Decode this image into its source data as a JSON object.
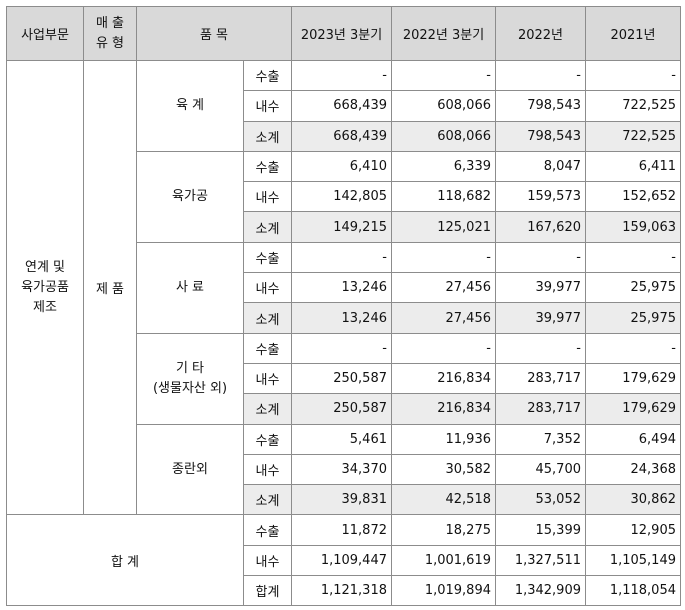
{
  "headers": {
    "division": "사업부문",
    "sales_type": "매 출\n유 형",
    "product": "품 목",
    "periods": [
      "2023년 3분기",
      "2022년 3분기",
      "2022년",
      "2021년"
    ]
  },
  "division_label": "연계 및\n육가공품\n제조",
  "sales_type_label": "제 품",
  "groups": [
    {
      "product": "육 계",
      "rows": [
        {
          "label": "수출",
          "values": [
            "-",
            "-",
            "-",
            "-"
          ]
        },
        {
          "label": "내수",
          "values": [
            "668,439",
            "608,066",
            "798,543",
            "722,525"
          ]
        },
        {
          "label": "소계",
          "values": [
            "668,439",
            "608,066",
            "798,543",
            "722,525"
          ]
        }
      ]
    },
    {
      "product": "육가공",
      "rows": [
        {
          "label": "수출",
          "values": [
            "6,410",
            "6,339",
            "8,047",
            "6,411"
          ]
        },
        {
          "label": "내수",
          "values": [
            "142,805",
            "118,682",
            "159,573",
            "152,652"
          ]
        },
        {
          "label": "소계",
          "values": [
            "149,215",
            "125,021",
            "167,620",
            "159,063"
          ]
        }
      ]
    },
    {
      "product": "사 료",
      "rows": [
        {
          "label": "수출",
          "values": [
            "-",
            "-",
            "-",
            "-"
          ]
        },
        {
          "label": "내수",
          "values": [
            "13,246",
            "27,456",
            "39,977",
            "25,975"
          ]
        },
        {
          "label": "소계",
          "values": [
            "13,246",
            "27,456",
            "39,977",
            "25,975"
          ]
        }
      ]
    },
    {
      "product": "기 타\n(생물자산 외)",
      "rows": [
        {
          "label": "수출",
          "values": [
            "-",
            "-",
            "-",
            "-"
          ]
        },
        {
          "label": "내수",
          "values": [
            "250,587",
            "216,834",
            "283,717",
            "179,629"
          ]
        },
        {
          "label": "소계",
          "values": [
            "250,587",
            "216,834",
            "283,717",
            "179,629"
          ]
        }
      ]
    },
    {
      "product": "종란외",
      "rows": [
        {
          "label": "수출",
          "values": [
            "5,461",
            "11,936",
            "7,352",
            "6,494"
          ]
        },
        {
          "label": "내수",
          "values": [
            "34,370",
            "30,582",
            "45,700",
            "24,368"
          ]
        },
        {
          "label": "소계",
          "values": [
            "39,831",
            "42,518",
            "53,052",
            "30,862"
          ]
        }
      ]
    }
  ],
  "total": {
    "label": "합 계",
    "rows": [
      {
        "label": "수출",
        "values": [
          "11,872",
          "18,275",
          "15,399",
          "12,905"
        ]
      },
      {
        "label": "내수",
        "values": [
          "1,109,447",
          "1,001,619",
          "1,327,511",
          "1,105,149"
        ]
      },
      {
        "label": "합계",
        "values": [
          "1,121,318",
          "1,019,894",
          "1,342,909",
          "1,118,054"
        ]
      }
    ]
  }
}
